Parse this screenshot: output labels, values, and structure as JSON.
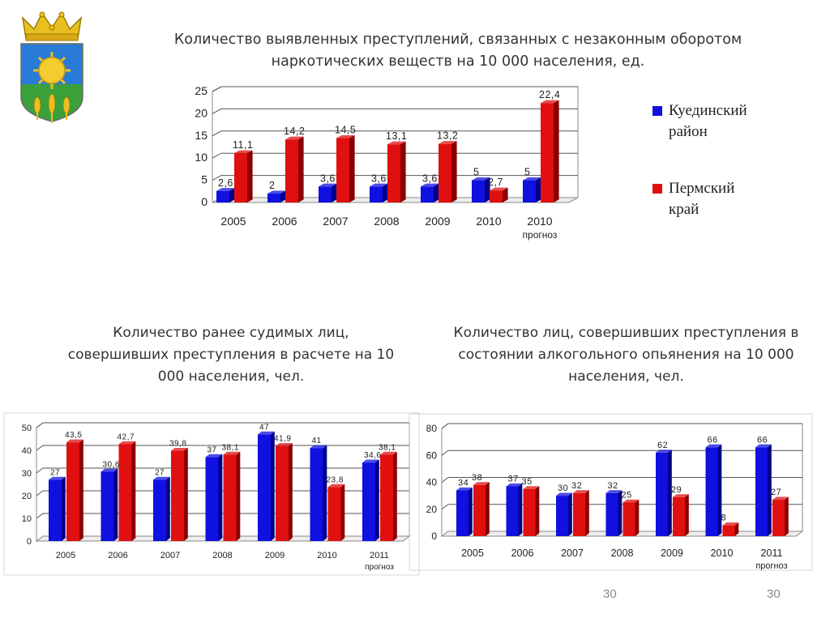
{
  "colors": {
    "series1": "#1010e0",
    "series2": "#e01010",
    "series1_dark": "#00008a",
    "series2_dark": "#8a0000"
  },
  "legend": {
    "series1": "Куединский район",
    "series2": "Пермский край"
  },
  "page_numbers": [
    "30",
    "30"
  ],
  "chart_data": [
    {
      "type": "bar",
      "title": "Количество выявленных преступлений, связанных с незаконным оборотом наркотических веществ на 10 000 населения, ед.",
      "categories": [
        "2005",
        "2006",
        "2007",
        "2008",
        "2009",
        "2010",
        "2010"
      ],
      "category_sublabels": [
        "",
        "",
        "",
        "",
        "",
        "",
        "прогноз"
      ],
      "series": [
        {
          "name": "Куединский район",
          "values": [
            2.6,
            2,
            3.6,
            3.6,
            3.6,
            5,
            5
          ],
          "labels": [
            "2,6",
            "2",
            "3,6",
            "3,6",
            "3,6",
            "5",
            "5"
          ]
        },
        {
          "name": "Пермский край",
          "values": [
            11.1,
            14.2,
            14.5,
            13.1,
            13.2,
            2.7,
            22.4
          ],
          "labels": [
            "11,1",
            "14,2",
            "14,5",
            "13,1",
            "13,2",
            "2,7",
            "22,4"
          ]
        }
      ],
      "ylim": [
        0,
        25
      ],
      "yticks": [
        0,
        5,
        10,
        15,
        20,
        25
      ],
      "grid": true,
      "legend": "right"
    },
    {
      "type": "bar",
      "title": "Количество ранее судимых лиц, совершивших  преступления в расчете на 10 000 населения, чел.",
      "categories": [
        "2005",
        "2006",
        "2007",
        "2008",
        "2009",
        "2010",
        "2011"
      ],
      "category_sublabels": [
        "",
        "",
        "",
        "",
        "",
        "",
        "прогноз"
      ],
      "series": [
        {
          "values": [
            27,
            30.6,
            27,
            37,
            47,
            41,
            34.6
          ],
          "labels": [
            "27",
            "30,6",
            "27",
            "37",
            "47",
            "41",
            "34,6"
          ]
        },
        {
          "values": [
            43.5,
            42.7,
            39.8,
            38.1,
            41.9,
            23.8,
            38.1
          ],
          "labels": [
            "43,5",
            "42,7",
            "39,8",
            "38,1",
            "41,9",
            "23,8",
            "38,1"
          ]
        }
      ],
      "ylim": [
        0,
        50
      ],
      "yticks": [
        0,
        10,
        20,
        30,
        40,
        50
      ],
      "grid": true
    },
    {
      "type": "bar",
      "title": "Количество лиц, совершивших преступления в состоянии алкогольного опьянения на 10 000 населения, чел.",
      "categories": [
        "2005",
        "2006",
        "2007",
        "2008",
        "2009",
        "2010",
        "2011"
      ],
      "category_sublabels": [
        "",
        "",
        "",
        "",
        "",
        "",
        "прогноз"
      ],
      "series": [
        {
          "values": [
            34,
            37,
            30,
            32,
            62,
            66,
            66
          ],
          "labels": [
            "34",
            "37",
            "30",
            "32",
            "62",
            "66",
            "66"
          ]
        },
        {
          "values": [
            38,
            35,
            32,
            25,
            29,
            8,
            27
          ],
          "labels": [
            "38",
            "35",
            "32",
            "25",
            "29",
            "8",
            "27"
          ]
        }
      ],
      "ylim": [
        0,
        80
      ],
      "yticks": [
        0,
        20,
        40,
        60,
        80
      ],
      "grid": true
    }
  ]
}
